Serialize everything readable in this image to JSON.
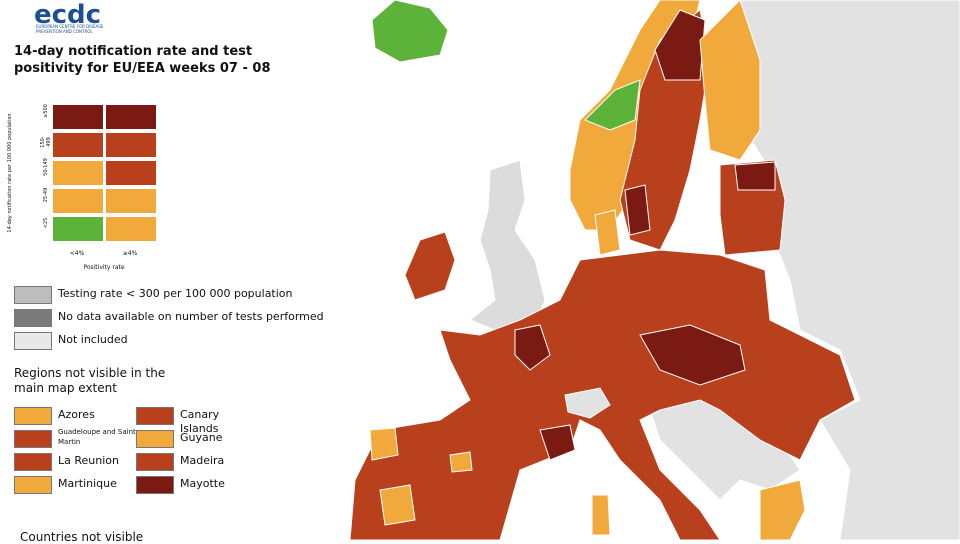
{
  "header": {
    "logo": "ecdc",
    "logo_subtitle": "EUROPEAN CENTRE FOR DISEASE PREVENTION AND CONTROL",
    "title": "14-day notification rate and test positivity for EU/EEA weeks 07 - 08"
  },
  "matrix": {
    "y_label": "14-day notification rate per 100 000 population",
    "rows": [
      "≥500",
      "150-499",
      "50-149",
      "25-49",
      "<25"
    ],
    "columns": [
      "<4%",
      "≥4%"
    ],
    "x_label": "Positivity rate"
  },
  "grey_legend": [
    "Testing rate < 300 per 100 000 population",
    "No data available on number of tests performed",
    "Not included"
  ],
  "regions": {
    "title": "Regions not visible in the main map extent",
    "left": [
      "Azores",
      "Guadeloupe and Saint Martin",
      "La Reunion",
      "Martinique"
    ],
    "right": [
      "Canary Islands",
      "Guyane",
      "Madeira",
      "Mayotte"
    ]
  },
  "footer": "Countries not visible"
}
